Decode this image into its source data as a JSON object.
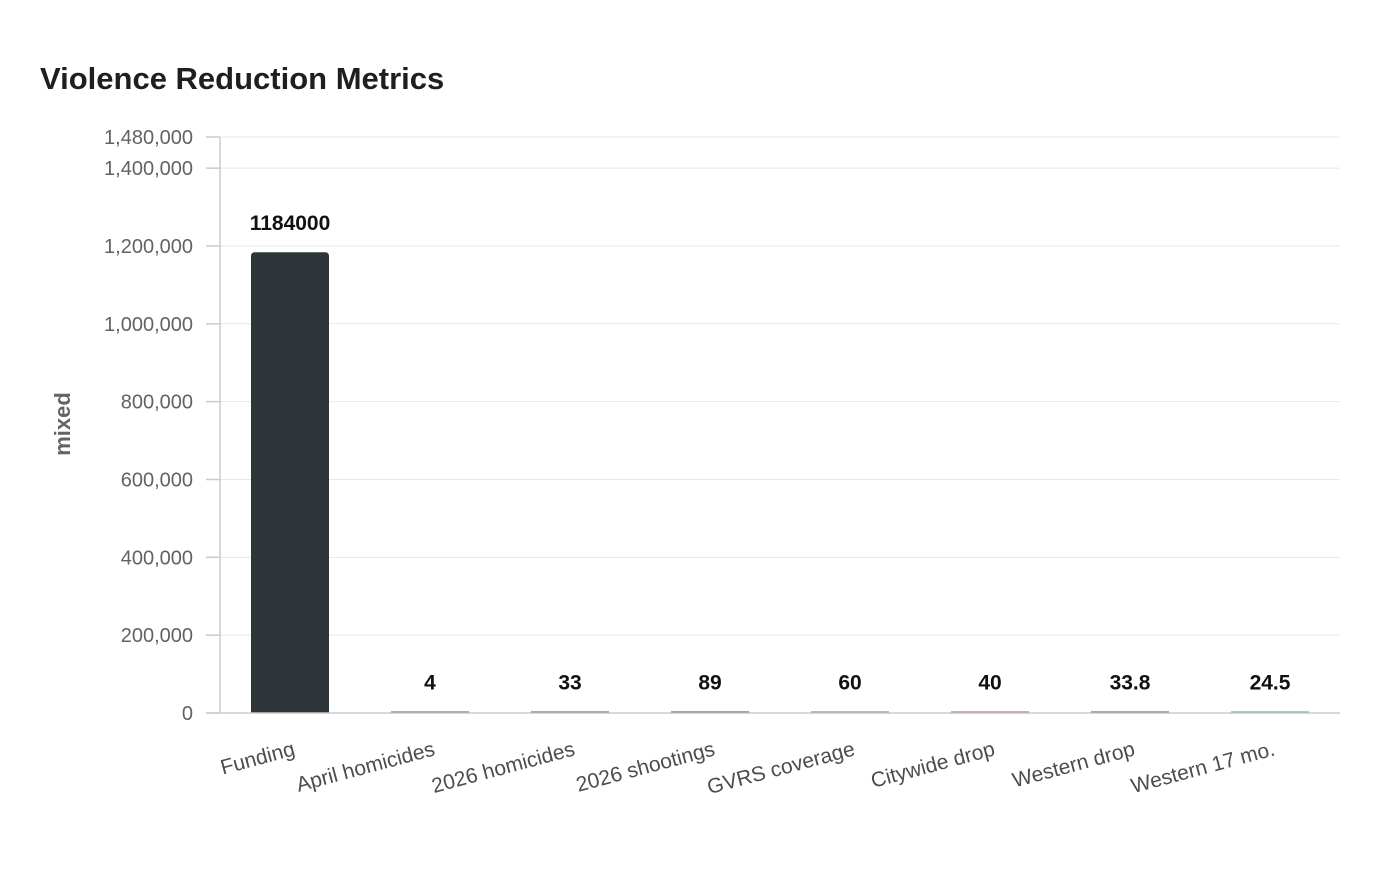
{
  "chart_data": {
    "type": "bar",
    "title": "Violence Reduction Metrics",
    "xlabel": "",
    "ylabel": "mixed",
    "categories": [
      "Funding",
      "April homicides",
      "2026 homicides",
      "2026 shootings",
      "GVRS coverage",
      "Citywide drop",
      "Western drop",
      "Western 17 mo."
    ],
    "values": [
      1184000,
      4,
      33,
      89,
      60,
      40,
      33.8,
      24.5
    ],
    "value_labels": [
      "1184000",
      "4",
      "33",
      "89",
      "60",
      "40",
      "33.8",
      "24.5"
    ],
    "colors": [
      "#2e3538",
      "#4a5d8a",
      "#3d5f78",
      "#3a4f5c",
      "#6e7a80",
      "#c0504d",
      "#4b4f7a",
      "#3aa69a"
    ],
    "ylim": [
      0,
      1480000
    ],
    "yticks": [
      0,
      200000,
      400000,
      600000,
      800000,
      1000000,
      1200000,
      1400000,
      1480000
    ],
    "ytick_labels": [
      "0",
      "200,000",
      "400,000",
      "600,000",
      "800,000",
      "1,000,000",
      "1,200,000",
      "1,400,000",
      "1,480,000"
    ],
    "grid": true,
    "legend": "none"
  }
}
